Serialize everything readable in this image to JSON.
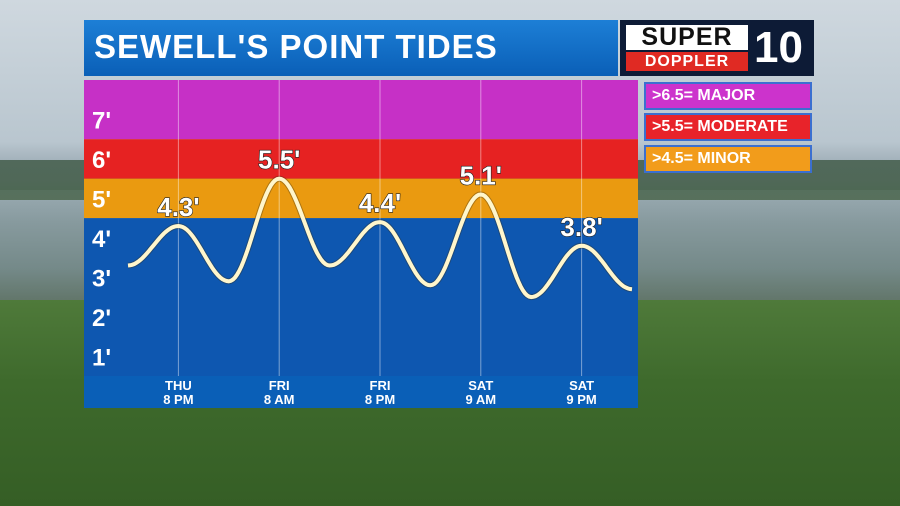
{
  "title": "SEWELL'S POINT TIDES",
  "logo": {
    "line1": "SUPER",
    "line2": "DOPPLER",
    "channel": "10"
  },
  "legend": [
    {
      "label": ">6.5= MAJOR",
      "color": "#cc33cc"
    },
    {
      "label": ">5.5= MODERATE",
      "color": "#e8232a"
    },
    {
      "label": ">4.5= MINOR",
      "color": "#f29c1b"
    }
  ],
  "colors": {
    "major": "#c630c6",
    "moderate": "#e62222",
    "minor": "#ea9a10",
    "normal": "#0e57b0",
    "axis_bar": "#0a5fb7",
    "curve": "#fff6cc"
  },
  "chart_data": {
    "type": "line",
    "title": "SEWELL'S POINT TIDES",
    "ylim": [
      0.5,
      8.0
    ],
    "y_ticks": [
      "1'",
      "2'",
      "3'",
      "4'",
      "5'",
      "6'",
      "7'"
    ],
    "y_tick_values": [
      1,
      2,
      3,
      4,
      5,
      6,
      7
    ],
    "x_ticks": [
      {
        "day": "THU",
        "time": "8 PM"
      },
      {
        "day": "FRI",
        "time": "8 AM"
      },
      {
        "day": "FRI",
        "time": "8 PM"
      },
      {
        "day": "SAT",
        "time": "9 AM"
      },
      {
        "day": "SAT",
        "time": "9 PM"
      }
    ],
    "thresholds": [
      {
        "name": "MAJOR",
        "min": 6.5
      },
      {
        "name": "MODERATE",
        "min": 5.5
      },
      {
        "name": "MINOR",
        "min": 4.5
      }
    ],
    "tide_curve": [
      {
        "t": 0.0,
        "ft": 3.3
      },
      {
        "t": 1.0,
        "ft": 4.3
      },
      {
        "t": 2.0,
        "ft": 2.9
      },
      {
        "t": 3.0,
        "ft": 5.5
      },
      {
        "t": 4.0,
        "ft": 3.3
      },
      {
        "t": 5.0,
        "ft": 4.4
      },
      {
        "t": 6.0,
        "ft": 2.8
      },
      {
        "t": 7.0,
        "ft": 5.1
      },
      {
        "t": 8.0,
        "ft": 2.5
      },
      {
        "t": 9.0,
        "ft": 3.8
      },
      {
        "t": 10.0,
        "ft": 2.7
      }
    ],
    "peak_labels": [
      {
        "t": 1.0,
        "ft": 4.3,
        "label": "4.3'"
      },
      {
        "t": 3.0,
        "ft": 5.5,
        "label": "5.5'"
      },
      {
        "t": 5.0,
        "ft": 4.4,
        "label": "4.4'"
      },
      {
        "t": 7.0,
        "ft": 5.1,
        "label": "5.1'"
      },
      {
        "t": 9.0,
        "ft": 3.8,
        "label": "3.8'"
      }
    ]
  }
}
